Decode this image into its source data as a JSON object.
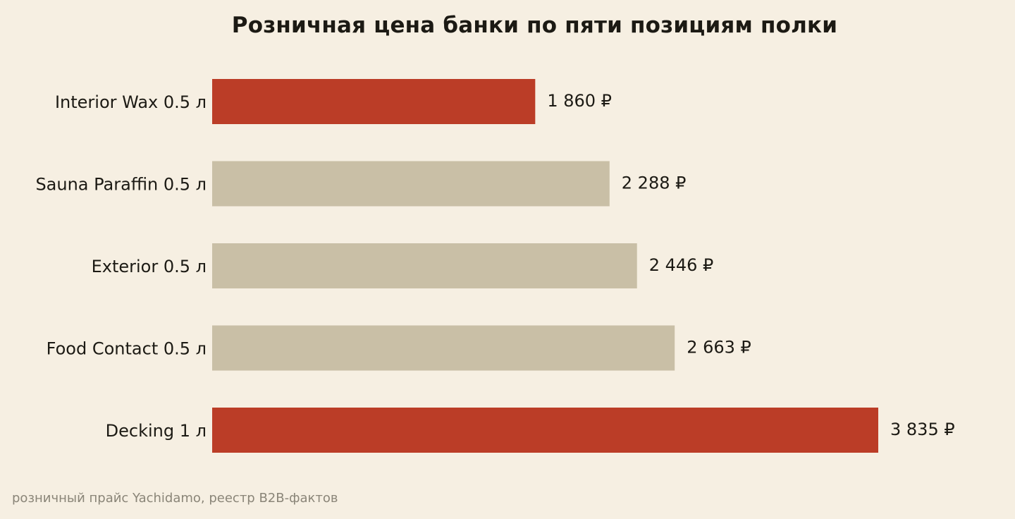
{
  "chart_data": {
    "type": "bar",
    "orientation": "horizontal",
    "title": "Розничная цена банки по пяти позициям полки",
    "categories": [
      "Interior Wax 0.5 л",
      "Sauna Paraffin 0.5 л",
      "Exterior 0.5 л",
      "Food Contact 0.5 л",
      "Decking 1 л"
    ],
    "values": [
      1860,
      2288,
      2446,
      2663,
      3835
    ],
    "value_labels": [
      "1 860 ₽",
      "2 288 ₽",
      "2 446 ₽",
      "2 663 ₽",
      "3 835 ₽"
    ],
    "highlighted": [
      true,
      false,
      false,
      false,
      true
    ],
    "xlim": [
      0,
      3835
    ],
    "grid": false,
    "colors": {
      "highlight": "#bb3d27",
      "default": "#c9bfa6",
      "background": "#f6efe2"
    }
  },
  "footer": {
    "source": "розничный прайс Yachidamo, реестр B2B-фактов"
  }
}
